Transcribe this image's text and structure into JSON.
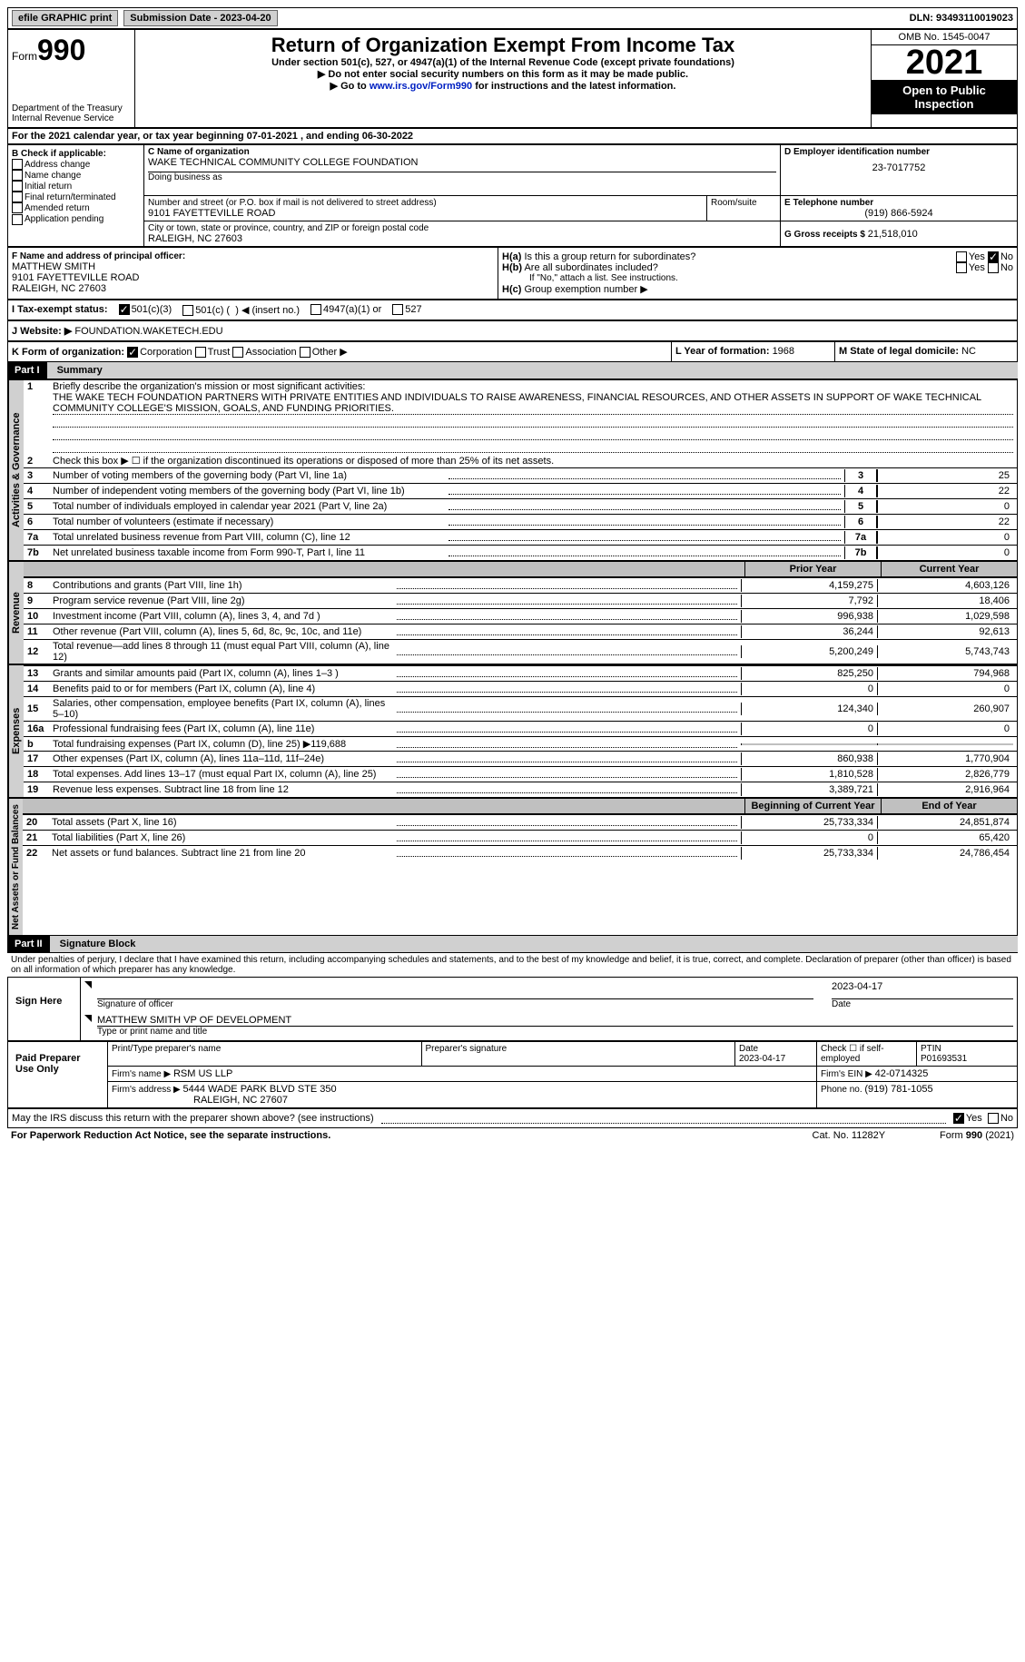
{
  "topbar": {
    "efile": "efile GRAPHIC print",
    "submission_lbl": "Submission Date - ",
    "submission_date": "2023-04-20",
    "dln_lbl": "DLN: ",
    "dln": "93493110019023"
  },
  "header": {
    "form_word": "Form",
    "form_num": "990",
    "dept1": "Department of the Treasury",
    "dept2": "Internal Revenue Service",
    "title": "Return of Organization Exempt From Income Tax",
    "sub1": "Under section 501(c), 527, or 4947(a)(1) of the Internal Revenue Code (except private foundations)",
    "sub2": "▶ Do not enter social security numbers on this form as it may be made public.",
    "sub3_a": "▶ Go to ",
    "sub3_link": "www.irs.gov/Form990",
    "sub3_b": " for instructions and the latest information.",
    "omb": "OMB No. 1545-0047",
    "year": "2021",
    "open1": "Open to Public",
    "open2": "Inspection"
  },
  "period": {
    "text_a": "For the 2021 calendar year, or tax year beginning ",
    "begin": "07-01-2021",
    "text_b": " , and ending ",
    "end": "06-30-2022"
  },
  "sectionB": {
    "label": "B Check if applicable:",
    "items": [
      "Address change",
      "Name change",
      "Initial return",
      "Final return/terminated",
      "Amended return",
      "Application pending"
    ]
  },
  "sectionC": {
    "name_lbl": "C Name of organization",
    "name": "WAKE TECHNICAL COMMUNITY COLLEGE FOUNDATION",
    "dba_lbl": "Doing business as",
    "dba": "",
    "street_lbl": "Number and street (or P.O. box if mail is not delivered to street address)",
    "room_lbl": "Room/suite",
    "street": "9101 FAYETTEVILLE ROAD",
    "city_lbl": "City or town, state or province, country, and ZIP or foreign postal code",
    "city": "RALEIGH, NC  27603"
  },
  "sectionD": {
    "ein_lbl": "D Employer identification number",
    "ein": "23-7017752"
  },
  "sectionE": {
    "phone_lbl": "E Telephone number",
    "phone": "(919) 866-5924"
  },
  "sectionG": {
    "gross_lbl": "G Gross receipts $ ",
    "gross": "21,518,010"
  },
  "sectionF": {
    "lbl": "F Name and address of principal officer:",
    "name": "MATTHEW SMITH",
    "street": "9101 FAYETTEVILLE ROAD",
    "city": "RALEIGH, NC  27603"
  },
  "sectionH": {
    "ha": "H(a)  Is this a group return for subordinates?",
    "hb": "H(b)  Are all subordinates included?",
    "hb_note": "If \"No,\" attach a list. See instructions.",
    "hc": "H(c)  Group exemption number ▶",
    "yes": "Yes",
    "no": "No"
  },
  "sectionI": {
    "lbl": "I  Tax-exempt status:",
    "opt1": "501(c)(3)",
    "opt2a": "501(c) (",
    "opt2b": ") ◀ (insert no.)",
    "opt3": "4947(a)(1) or",
    "opt4": "527"
  },
  "sectionJ": {
    "lbl": "J  Website: ▶",
    "url": "FOUNDATION.WAKETECH.EDU"
  },
  "sectionK": {
    "lbl": "K Form of organization:",
    "opts": [
      "Corporation",
      "Trust",
      "Association",
      "Other ▶"
    ]
  },
  "sectionL": {
    "lbl": "L Year of formation: ",
    "val": "1968"
  },
  "sectionM": {
    "lbl": "M State of legal domicile: ",
    "val": "NC"
  },
  "part1": {
    "bar": "Part I",
    "title": "Summary",
    "vert_gov": "Activities & Governance",
    "vert_rev": "Revenue",
    "vert_exp": "Expenses",
    "vert_net": "Net Assets or Fund Balances",
    "l1_lbl": "Briefly describe the organization's mission or most significant activities:",
    "l1_text": "THE WAKE TECH FOUNDATION PARTNERS WITH PRIVATE ENTITIES AND INDIVIDUALS TO RAISE AWARENESS, FINANCIAL RESOURCES, AND OTHER ASSETS IN SUPPORT OF WAKE TECHNICAL COMMUNITY COLLEGE'S MISSION, GOALS, AND FUNDING PRIORITIES.",
    "l2": "Check this box ▶ ☐ if the organization discontinued its operations or disposed of more than 25% of its net assets.",
    "lines": {
      "3": {
        "d": "Number of voting members of the governing body (Part VI, line 1a)",
        "b": "3",
        "v": "25"
      },
      "4": {
        "d": "Number of independent voting members of the governing body (Part VI, line 1b)",
        "b": "4",
        "v": "22"
      },
      "5": {
        "d": "Total number of individuals employed in calendar year 2021 (Part V, line 2a)",
        "b": "5",
        "v": "0"
      },
      "6": {
        "d": "Total number of volunteers (estimate if necessary)",
        "b": "6",
        "v": "22"
      },
      "7a": {
        "d": "Total unrelated business revenue from Part VIII, column (C), line 12",
        "b": "7a",
        "v": "0"
      },
      "7b": {
        "d": "Net unrelated business taxable income from Form 990-T, Part I, line 11",
        "b": "7b",
        "v": "0"
      }
    },
    "col_prior": "Prior Year",
    "col_curr": "Current Year",
    "rev": [
      {
        "n": "8",
        "d": "Contributions and grants (Part VIII, line 1h)",
        "p": "4,159,275",
        "c": "4,603,126"
      },
      {
        "n": "9",
        "d": "Program service revenue (Part VIII, line 2g)",
        "p": "7,792",
        "c": "18,406"
      },
      {
        "n": "10",
        "d": "Investment income (Part VIII, column (A), lines 3, 4, and 7d )",
        "p": "996,938",
        "c": "1,029,598"
      },
      {
        "n": "11",
        "d": "Other revenue (Part VIII, column (A), lines 5, 6d, 8c, 9c, 10c, and 11e)",
        "p": "36,244",
        "c": "92,613"
      },
      {
        "n": "12",
        "d": "Total revenue—add lines 8 through 11 (must equal Part VIII, column (A), line 12)",
        "p": "5,200,249",
        "c": "5,743,743"
      }
    ],
    "exp": [
      {
        "n": "13",
        "d": "Grants and similar amounts paid (Part IX, column (A), lines 1–3 )",
        "p": "825,250",
        "c": "794,968"
      },
      {
        "n": "14",
        "d": "Benefits paid to or for members (Part IX, column (A), line 4)",
        "p": "0",
        "c": "0"
      },
      {
        "n": "15",
        "d": "Salaries, other compensation, employee benefits (Part IX, column (A), lines 5–10)",
        "p": "124,340",
        "c": "260,907"
      },
      {
        "n": "16a",
        "d": "Professional fundraising fees (Part IX, column (A), line 11e)",
        "p": "0",
        "c": "0"
      },
      {
        "n": "b",
        "d": "Total fundraising expenses (Part IX, column (D), line 25) ▶119,688",
        "p": "",
        "c": "",
        "shaded": true
      },
      {
        "n": "17",
        "d": "Other expenses (Part IX, column (A), lines 11a–11d, 11f–24e)",
        "p": "860,938",
        "c": "1,770,904"
      },
      {
        "n": "18",
        "d": "Total expenses. Add lines 13–17 (must equal Part IX, column (A), line 25)",
        "p": "1,810,528",
        "c": "2,826,779"
      },
      {
        "n": "19",
        "d": "Revenue less expenses. Subtract line 18 from line 12",
        "p": "3,389,721",
        "c": "2,916,964"
      }
    ],
    "col_begin": "Beginning of Current Year",
    "col_end": "End of Year",
    "net": [
      {
        "n": "20",
        "d": "Total assets (Part X, line 16)",
        "p": "25,733,334",
        "c": "24,851,874"
      },
      {
        "n": "21",
        "d": "Total liabilities (Part X, line 26)",
        "p": "0",
        "c": "65,420"
      },
      {
        "n": "22",
        "d": "Net assets or fund balances. Subtract line 21 from line 20",
        "p": "25,733,334",
        "c": "24,786,454"
      }
    ]
  },
  "part2": {
    "bar": "Part II",
    "title": "Signature Block",
    "decl": "Under penalties of perjury, I declare that I have examined this return, including accompanying schedules and statements, and to the best of my knowledge and belief, it is true, correct, and complete. Declaration of preparer (other than officer) is based on all information of which preparer has any knowledge.",
    "sign_here": "Sign Here",
    "sig_officer": "Signature of officer",
    "sig_date": "Date",
    "sig_dateval": "2023-04-17",
    "officer_name": "MATTHEW SMITH  VP OF DEVELOPMENT",
    "officer_name_lbl": "Type or print name and title",
    "paid_lbl": "Paid Preparer Use Only",
    "prep_name_lbl": "Print/Type preparer's name",
    "prep_sig_lbl": "Preparer's signature",
    "prep_date_lbl": "Date",
    "prep_date": "2023-04-17",
    "self_lbl": "Check ☐ if self-employed",
    "ptin_lbl": "PTIN",
    "ptin": "P01693531",
    "firm_name_lbl": "Firm's name    ▶ ",
    "firm_name": "RSM US LLP",
    "firm_ein_lbl": "Firm's EIN ▶ ",
    "firm_ein": "42-0714325",
    "firm_addr_lbl": "Firm's address ▶ ",
    "firm_addr1": "5444 WADE PARK BLVD STE 350",
    "firm_addr2": "RALEIGH, NC  27607",
    "firm_phone_lbl": "Phone no. ",
    "firm_phone": "(919) 781-1055",
    "discuss": "May the IRS discuss this return with the preparer shown above? (see instructions)",
    "yes": "Yes",
    "no": "No"
  },
  "footer": {
    "left": "For Paperwork Reduction Act Notice, see the separate instructions.",
    "mid": "Cat. No. 11282Y",
    "right": "Form 990 (2021)"
  }
}
